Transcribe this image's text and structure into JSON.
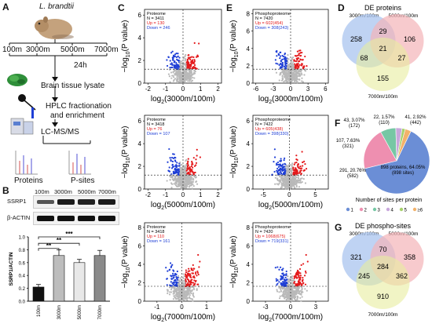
{
  "panel_letters": {
    "a": "A",
    "b": "B",
    "c": "C",
    "d": "D",
    "e": "E",
    "f": "F",
    "g": "G"
  },
  "panel_a": {
    "species": "L. brandtii",
    "altitudes": [
      "100m",
      "3000m",
      "5000m",
      "7000m"
    ],
    "time": "24h",
    "steps": [
      "Brain tissue lysate",
      "HPLC fractionation",
      "and enrichment",
      "LC-MS/MS"
    ],
    "outputs": [
      "Proteins",
      "P-sites"
    ]
  },
  "panel_b": {
    "lanes": [
      "100m",
      "3000m",
      "5000m",
      "7000m"
    ],
    "blots": [
      "SSRP1",
      "β-ACTIN"
    ],
    "ylabel": "SSRP1/ACTIN",
    "sig": [
      "**",
      "**",
      "***"
    ]
  },
  "chart_data": [
    {
      "id": "B-bar",
      "type": "bar",
      "categories": [
        "100m",
        "3000m",
        "5000m",
        "7000m"
      ],
      "values": [
        0.22,
        0.71,
        0.6,
        0.71
      ],
      "errors": [
        0.04,
        0.09,
        0.05,
        0.08
      ],
      "ylabel": "SSRP1/ACTIN",
      "ylim": [
        0,
        1.0
      ],
      "yticks": [
        "0.0",
        "0.2",
        "0.4",
        "0.6",
        "0.8",
        "1.0"
      ],
      "colors": [
        "#111111",
        "#bdbdbd",
        "#e8e8e8",
        "#8a8a8a"
      ]
    },
    {
      "id": "C1",
      "type": "scatter",
      "title": "Proteome",
      "N": "N = 3411",
      "up": "Up = 130",
      "down": "Down = 246",
      "xlabel": "3000m/100m",
      "xticks": [
        "-2",
        "-1",
        "0",
        "1",
        "2"
      ],
      "xlim": [
        -2.2,
        2.2
      ],
      "yticks": [
        "0",
        "2",
        "4",
        "6"
      ],
      "ylim": [
        0,
        6.5
      ]
    },
    {
      "id": "C2",
      "type": "scatter",
      "title": "Proteome",
      "N": "N = 3418",
      "up": "Up = 76",
      "down": "Down = 107",
      "xlabel": "5000m/100m",
      "xticks": [
        "-2",
        "-1",
        "0",
        "1",
        "2"
      ],
      "xlim": [
        -2.2,
        2.2
      ],
      "yticks": [
        "0",
        "2",
        "4",
        "6"
      ],
      "ylim": [
        0,
        6.5
      ]
    },
    {
      "id": "C3",
      "type": "scatter",
      "title": "Proteome",
      "N": "N = 3418",
      "up": "Up = 110",
      "down": "Down = 161",
      "xlabel": "7000m/100m",
      "xticks": [
        "-1",
        "0",
        "1"
      ],
      "xlim": [
        -1.5,
        1.6
      ],
      "yticks": [
        "0",
        "2",
        "4",
        "6",
        "8"
      ],
      "ylim": [
        0,
        8.5
      ]
    },
    {
      "id": "E1",
      "type": "scatter",
      "title": "Phosphoproteome",
      "N": "N = 7420",
      "up": "Up = 602(454)",
      "down": "Down = 308(243)",
      "xlabel": "3000m/100m",
      "xticks": [
        "-6",
        "-3",
        "0",
        "3",
        "6"
      ],
      "xlim": [
        -6.5,
        6.5
      ],
      "yticks": [
        "0",
        "2",
        "4",
        "6",
        "8"
      ],
      "ylim": [
        0,
        8.5
      ]
    },
    {
      "id": "E2",
      "type": "scatter",
      "title": "Phosphoproteome",
      "N": "N = 7422",
      "up": "Up = 605(438)",
      "down": "Down = 398(330)",
      "xlabel": "5000m/100m",
      "xticks": [
        "-5",
        "0",
        "5"
      ],
      "xlim": [
        -7,
        7.5
      ],
      "yticks": [
        "0",
        "2",
        "4",
        "6"
      ],
      "ylim": [
        0,
        6.5
      ]
    },
    {
      "id": "E3",
      "type": "scatter",
      "title": "Phosphoproteome",
      "N": "N = 7420",
      "up": "Up = 1068(675)",
      "down": "Down = 719(331)",
      "xlabel": "7000m/100m",
      "xticks": [
        "-3",
        "0",
        "3"
      ],
      "xlim": [
        -4.5,
        4.5
      ],
      "yticks": [
        "0",
        "2",
        "4",
        "6",
        "8"
      ],
      "ylim": [
        0,
        8.5
      ]
    },
    {
      "id": "F-pie",
      "type": "pie",
      "title": "Number of sites per protein",
      "slices": [
        {
          "label": "1",
          "value": 898,
          "text1": "898 proteins, 64.05%",
          "text2": "(898 sites)",
          "color": "#6b8ed6"
        },
        {
          "label": "2",
          "value": 291,
          "text1": "291, 20.76%",
          "text2": "(582)",
          "color": "#ee8fb0"
        },
        {
          "label": "3",
          "value": 107,
          "text1": "107, 7.63%",
          "text2": "(321)",
          "color": "#76c7a4"
        },
        {
          "label": "4",
          "value": 43,
          "text1": "43, 3.07%",
          "text2": "(172)",
          "color": "#c8a7dc"
        },
        {
          "label": "5",
          "value": 22,
          "text1": "22, 1.57%",
          "text2": "(110)",
          "color": "#a6d16b"
        },
        {
          "label": "≥6",
          "value": 41,
          "text1": "41, 2.92%",
          "text2": "(442)",
          "color": "#f2b26b"
        }
      ]
    },
    {
      "id": "D-venn",
      "type": "venn",
      "title": "DE proteins",
      "sets": [
        "3000m/100m",
        "5000m/100m",
        "7000m/100m"
      ],
      "regions": {
        "a": 258,
        "b": 106,
        "c": 155,
        "ab": 29,
        "ac": 68,
        "bc": 27,
        "abc": 21
      }
    },
    {
      "id": "G-venn",
      "type": "venn",
      "title": "DE phospho-sites",
      "sets": [
        "3000m/100m",
        "5000m/100m",
        "7000m/100m"
      ],
      "regions": {
        "a": 321,
        "b": 358,
        "c": 910,
        "ab": 70,
        "ac": 245,
        "bc": 362,
        "abc": 284
      }
    }
  ],
  "colors": {
    "up": "#e41a1c",
    "down": "#1f3fd6",
    "ns": "#b9b9b9",
    "venn_a": "#a9c4ef",
    "venn_b": "#f3b3b8",
    "venn_c": "#e7ec9f"
  },
  "axis": {
    "ylabel_prefix": "−log",
    "ylabel_suffix": "(P value)",
    "xlabel_prefix": "log",
    "sub": "10",
    "sub2": "2"
  }
}
